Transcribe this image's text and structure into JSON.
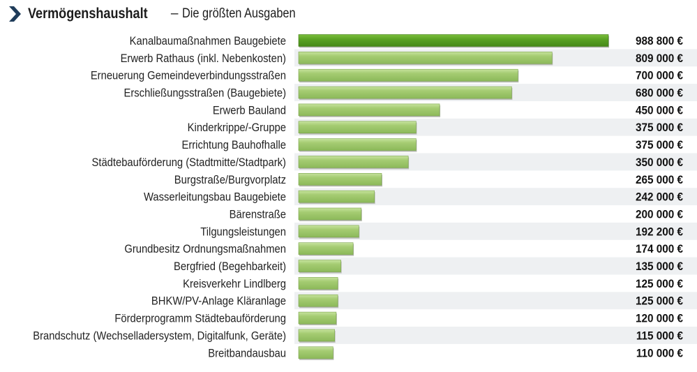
{
  "header": {
    "title": "Vermögenshaushalt",
    "separator": "–",
    "subtitle": "Die größten Ausgaben"
  },
  "colors": {
    "accent_dark": "#4e8a1e",
    "bar": "#9cc56a",
    "bar_top": "#c4e09a",
    "bar_first": "#5aa224",
    "row_stripe": "#eef0f2",
    "chevron": "#1f3c5a"
  },
  "chart_data": {
    "type": "bar",
    "orientation": "horizontal",
    "categories": [
      "Kanalbaumaßnahmen Baugebiete",
      "Erwerb Rathaus (inkl. Nebenkosten)",
      "Erneuerung Gemeindeverbindungsstraßen",
      "Erschließungsstraßen (Baugebiete)",
      "Erwerb Bauland",
      "Kinderkrippe/-Gruppe",
      "Errichtung Bauhofhalle",
      "Städtebauförderung (Stadtmitte/Stadtpark)",
      "Burgstraße/Burgvorplatz",
      "Wasserleitungsbau Baugebiete",
      "Bärenstraße",
      "Tilgungsleistungen",
      "Grundbesitz Ordnungsmaßnahmen",
      "Bergfried (Begehbarkeit)",
      "Kreisverkehr Lindlberg",
      "BHKW/PV-Anlage Kläranlage",
      "Förderprogramm Städtebauförderung",
      "Brandschutz (Wechselladersystem, Digitalfunk, Geräte)",
      "Breitbandausbau"
    ],
    "values": [
      988800,
      809000,
      700000,
      680000,
      450000,
      375000,
      375000,
      350000,
      265000,
      242000,
      200000,
      192200,
      174000,
      135000,
      125000,
      125000,
      120000,
      115000,
      110000
    ],
    "value_labels": [
      "988 800 €",
      "809 000 €",
      "700 000 €",
      "680 000 €",
      "450 000 €",
      "375 000 €",
      "375 000 €",
      "350 000 €",
      "265 000 €",
      "242 000 €",
      "200 000 €",
      "192 200 €",
      "174 000 €",
      "135 000 €",
      "125 000 €",
      "125 000 €",
      "120 000 €",
      "115 000 €",
      "110 000 €"
    ],
    "xlim": [
      0,
      988800
    ],
    "grid": false,
    "legend": "none"
  }
}
